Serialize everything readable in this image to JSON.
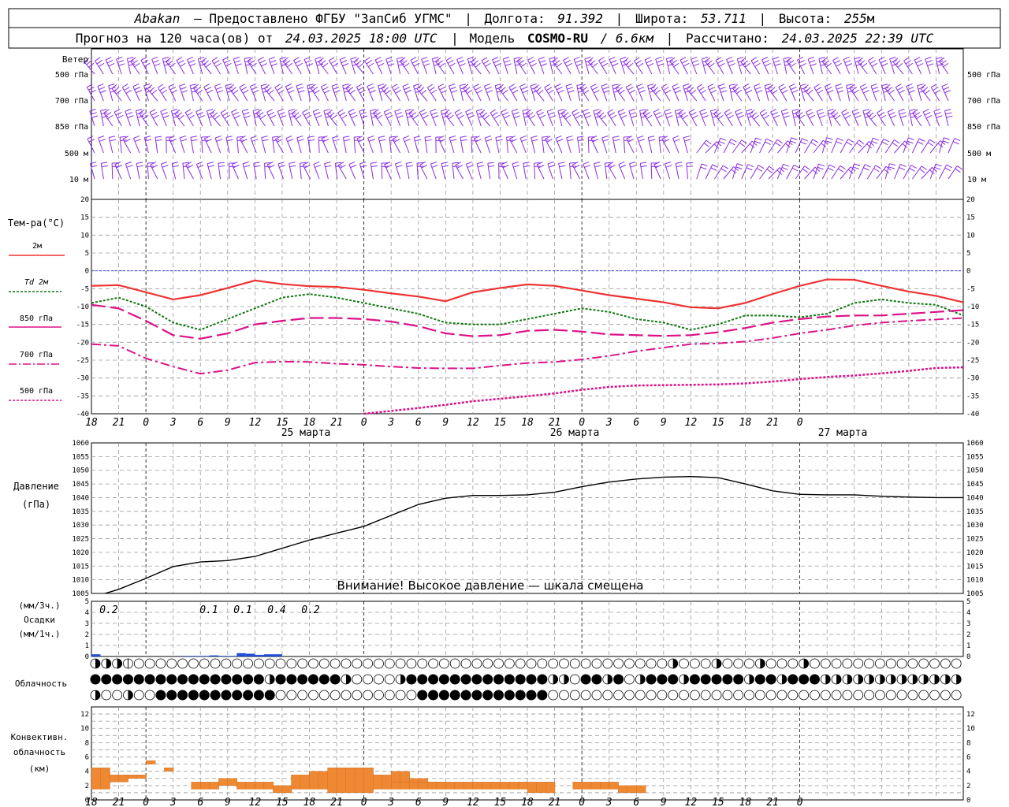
{
  "header": {
    "station": "Abakan",
    "provider": "— Предоставлено ФГБУ \"ЗапСиб УГМС\"",
    "lon_label": "Долгота:",
    "lon": "91.392",
    "lat_label": "Широта:",
    "lat": "53.711",
    "alt_label": "Высота:",
    "alt": "255",
    "alt_unit": "м",
    "forecast_label": "Прогноз на 120 часа(ов) от",
    "forecast_from": "24.03.2025 18:00 UTC",
    "model_label": "Модель",
    "model": "COSMO-RU",
    "resolution": "/ 6.6км",
    "computed_label": "Рассчитано:",
    "computed": "24.03.2025 22:39 UTC"
  },
  "wind_panel": {
    "title": "Ветер",
    "levels": [
      "500 гПа",
      "700 гПа",
      "850 гПа",
      "500 м",
      "10 м"
    ]
  },
  "temp_panel": {
    "title": "Тем-ра(°C)",
    "legend": [
      {
        "label": "2м",
        "color": "#ee3333",
        "dash": "solid"
      },
      {
        "label": "Td 2м",
        "color": "#117711",
        "dash": "dotted"
      },
      {
        "label": "850 гПа",
        "color": "#dd1188",
        "dash": "long-dash"
      },
      {
        "label": "700 гПа",
        "color": "#dd1188",
        "dash": "dash-dot"
      },
      {
        "label": "500 гПа",
        "color": "#dd1188",
        "dash": "dotted"
      }
    ],
    "yticks": [
      "20",
      "15",
      "10",
      "5",
      "0",
      "-5",
      "-10",
      "-15",
      "-20",
      "-25",
      "-30",
      "-35",
      "-40"
    ]
  },
  "pressure_panel": {
    "title": "Давление",
    "unit": "(гПа)",
    "warning": "Внимание! Высокое давление — шкала смещена",
    "yticks": [
      "1060",
      "1055",
      "1050",
      "1045",
      "1040",
      "1035",
      "1030",
      "1025",
      "1020",
      "1015",
      "1010",
      "1005"
    ]
  },
  "precip_panel": {
    "unit3": "(мм/3ч.)",
    "title": "Осадки",
    "unit1": "(мм/1ч.)",
    "yticks": [
      "5",
      "4",
      "3",
      "2",
      "1",
      "0"
    ],
    "labels": [
      "0.2",
      "0.1",
      "0.1",
      "0.4",
      "0.2"
    ]
  },
  "cloud_panel": {
    "title": "Облачность"
  },
  "conv_panel": {
    "title1": "Конвективн.",
    "title2": "облачность",
    "unit": "(км)",
    "yticks": [
      "12",
      "10",
      "8",
      "6",
      "4",
      "2",
      "0"
    ]
  },
  "x_axis": {
    "hour_labels": [
      "18",
      "21",
      "0",
      "3",
      "6",
      "9",
      "12",
      "15",
      "18",
      "21",
      "0",
      "3",
      "6",
      "9",
      "12",
      "15",
      "18",
      "21",
      "0",
      "3",
      "6",
      "9",
      "12",
      "15",
      "18",
      "21",
      "0"
    ],
    "dates": [
      "25 марта",
      "26 марта",
      "27 марта"
    ]
  },
  "chart_data": [
    {
      "type": "line",
      "title": "Тем-ра(°C)",
      "x_unit": "hours since 24.03.2025 18:00 UTC",
      "ylim": [
        -40,
        20
      ],
      "grid": true,
      "series": [
        {
          "name": "2м",
          "x": [
            0,
            3,
            6,
            9,
            12,
            15,
            18,
            21,
            24,
            27,
            30,
            33,
            36,
            39,
            42,
            45,
            48,
            51,
            54,
            57,
            60,
            63,
            66,
            69,
            72,
            75,
            78,
            81,
            84,
            87,
            90,
            93,
            96
          ],
          "values": [
            -4.2,
            -4.0,
            -6.0,
            -8.0,
            -6.8,
            -4.8,
            -2.7,
            -3.7,
            -4.3,
            -4.5,
            -5.3,
            -6.3,
            -7.2,
            -8.5,
            -6.0,
            -4.8,
            -3.8,
            -4.2,
            -5.5,
            -6.8,
            -7.8,
            -8.8,
            -10.2,
            -10.5,
            -9.0,
            -6.5,
            -4.2,
            -2.4,
            -2.5,
            -4.2,
            -5.8,
            -7.0,
            -8.8
          ]
        },
        {
          "name": "Td 2м",
          "x": [
            0,
            3,
            6,
            9,
            12,
            15,
            18,
            21,
            24,
            27,
            30,
            33,
            36,
            39,
            42,
            45,
            48,
            51,
            54,
            57,
            60,
            63,
            66,
            69,
            72,
            75,
            78,
            81,
            84,
            87,
            90,
            93,
            96
          ],
          "values": [
            -9.0,
            -7.5,
            -10.0,
            -14.5,
            -16.5,
            -13.5,
            -10.5,
            -7.5,
            -6.5,
            -7.5,
            -9.0,
            -10.5,
            -12.0,
            -14.5,
            -15.0,
            -15.0,
            -13.5,
            -12.0,
            -10.5,
            -11.5,
            -13.5,
            -14.5,
            -16.5,
            -15.0,
            -12.5,
            -12.5,
            -13.0,
            -12.0,
            -9.0,
            -8.0,
            -9.0,
            -9.5,
            -12.5
          ]
        },
        {
          "name": "850 гПа",
          "x": [
            0,
            3,
            6,
            9,
            12,
            15,
            18,
            21,
            24,
            27,
            30,
            33,
            36,
            39,
            42,
            45,
            48,
            51,
            54,
            57,
            60,
            63,
            66,
            69,
            72,
            75,
            78,
            81,
            84,
            87,
            90,
            93,
            96
          ],
          "values": [
            -9.5,
            -10.5,
            -14.0,
            -18.0,
            -19.0,
            -17.5,
            -15.0,
            -14.0,
            -13.2,
            -13.2,
            -13.5,
            -14.2,
            -15.5,
            -17.5,
            -18.3,
            -18.0,
            -16.8,
            -16.5,
            -17.0,
            -17.8,
            -18.0,
            -18.2,
            -18.0,
            -17.2,
            -16.0,
            -14.5,
            -13.5,
            -12.8,
            -12.5,
            -12.5,
            -12.0,
            -11.5,
            -11.0
          ]
        },
        {
          "name": "700 гПа",
          "x": [
            0,
            3,
            6,
            9,
            12,
            15,
            18,
            21,
            24,
            27,
            30,
            33,
            36,
            39,
            42,
            45,
            48,
            51,
            54,
            57,
            60,
            63,
            66,
            69,
            72,
            75,
            78,
            81,
            84,
            87,
            90,
            93,
            96
          ],
          "values": [
            -20.5,
            -21.0,
            -24.5,
            -26.8,
            -28.8,
            -27.8,
            -25.7,
            -25.4,
            -25.5,
            -26.0,
            -26.3,
            -26.8,
            -27.2,
            -27.3,
            -27.3,
            -26.5,
            -25.8,
            -25.5,
            -24.8,
            -23.8,
            -22.5,
            -21.5,
            -20.5,
            -20.3,
            -19.8,
            -18.8,
            -17.5,
            -16.5,
            -15.3,
            -14.5,
            -14.0,
            -13.6,
            -13.2
          ]
        },
        {
          "name": "500 гПа",
          "x": [
            30,
            33,
            36,
            39,
            42,
            45,
            48,
            51,
            54,
            57,
            60,
            63,
            66,
            69,
            72,
            75,
            78,
            81,
            84,
            87,
            90,
            93,
            96
          ],
          "values": [
            -40.0,
            -39.2,
            -38.4,
            -37.5,
            -36.5,
            -35.8,
            -35.1,
            -34.3,
            -33.3,
            -32.5,
            -32.1,
            -32.0,
            -31.9,
            -31.8,
            -31.5,
            -31.0,
            -30.3,
            -29.7,
            -29.3,
            -28.7,
            -28.0,
            -27.2,
            -27.0
          ]
        }
      ]
    },
    {
      "type": "line",
      "title": "Давление",
      "x_unit": "hours since 24.03.2025 18:00 UTC",
      "ylim": [
        1005,
        1060
      ],
      "grid": true,
      "series": [
        {
          "name": "",
          "x": [
            0,
            3,
            6,
            9,
            12,
            15,
            18,
            21,
            24,
            27,
            30,
            33,
            36,
            39,
            42,
            45,
            48,
            51,
            54,
            57,
            60,
            63,
            66,
            69,
            72,
            75,
            78,
            81,
            84,
            87,
            90,
            93,
            96
          ],
          "values": [
            1003.5,
            1006.5,
            1010.5,
            1014.8,
            1016.5,
            1017.0,
            1018.5,
            1021.5,
            1024.5,
            1027.0,
            1029.5,
            1033.5,
            1037.5,
            1039.8,
            1040.8,
            1040.8,
            1041.0,
            1042.0,
            1044.0,
            1045.7,
            1046.8,
            1047.5,
            1047.7,
            1047.3,
            1045.0,
            1042.5,
            1041.2,
            1041.0,
            1041.0,
            1040.5,
            1040.2,
            1040.0,
            1040.0
          ]
        }
      ]
    },
    {
      "type": "bar",
      "title": "Осадки",
      "x_unit": "hours since 24.03.2025 18:00 UTC",
      "ylim": [
        0,
        5
      ],
      "series": [
        {
          "name": "(мм/1ч.)",
          "x": [
            0,
            1,
            10,
            11,
            12,
            13,
            14,
            15,
            16,
            17,
            18,
            19,
            20
          ],
          "values": [
            0.2,
            0.0,
            0.05,
            0.05,
            0.05,
            0.1,
            0.05,
            0.05,
            0.3,
            0.25,
            0.15,
            0.2,
            0.2
          ]
        }
      ]
    },
    {
      "type": "bar",
      "title": "Конвективн. облачность",
      "x_unit": "hours since 24.03.2025 18:00 UTC",
      "ylim": [
        0,
        13
      ],
      "series": [
        {
          "name": "",
          "x": [
            0,
            1,
            2,
            3,
            4,
            5,
            6,
            7,
            8,
            9,
            10,
            11,
            12,
            13,
            14,
            15,
            16,
            17,
            18,
            19,
            20,
            21,
            22,
            23,
            24,
            25,
            26,
            27,
            28,
            29,
            30,
            31,
            32,
            33,
            34,
            35,
            36,
            37,
            38,
            39,
            40,
            41,
            42,
            43,
            44,
            45,
            46,
            47,
            48,
            49,
            50,
            51,
            52,
            53,
            54,
            55,
            56,
            57,
            58,
            59,
            60,
            61,
            62
          ],
          "bottom": [
            1.5,
            1.5,
            2.5,
            2.5,
            3.0,
            3.0,
            5.0,
            null,
            4.0,
            null,
            null,
            1.5,
            1.5,
            1.5,
            2.0,
            2.0,
            1.5,
            1.5,
            1.5,
            1.5,
            1.0,
            1.0,
            1.5,
            1.5,
            1.5,
            1.5,
            1.0,
            1.0,
            1.0,
            1.0,
            1.0,
            1.5,
            1.5,
            2.0,
            2.0,
            2.5,
            2.5,
            2.0,
            2.0,
            null,
            null,
            null,
            null,
            null,
            null,
            null,
            null,
            null,
            null,
            null,
            null,
            null,
            null,
            null,
            null,
            null,
            null,
            null,
            null,
            null,
            null,
            null,
            null
          ],
          "top": [
            4.5,
            4.5,
            3.5,
            3.5,
            3.5,
            3.5,
            5.5,
            null,
            4.5,
            null,
            null,
            2.5,
            2.5,
            2.5,
            3.0,
            3.0,
            2.5,
            2.5,
            2.5,
            2.5,
            2.0,
            2.0,
            3.5,
            3.5,
            4.0,
            4.0,
            4.5,
            4.5,
            4.5,
            4.5,
            4.5,
            3.5,
            3.5,
            4.0,
            4.0,
            3.0,
            3.0,
            2.5,
            2.5,
            null,
            null,
            null,
            null,
            null,
            null,
            null,
            null,
            null,
            null,
            null,
            null,
            null,
            null,
            null,
            null,
            null,
            null,
            null,
            null,
            null,
            null,
            null,
            null
          ]
        },
        {
          "name": "",
          "x": [
            33,
            34,
            35,
            36,
            37,
            38,
            39,
            40,
            41,
            42,
            43,
            44,
            45,
            46,
            47,
            48,
            49,
            50,
            51,
            52,
            53,
            54,
            55,
            56,
            57,
            58,
            59,
            60
          ],
          "bottom": [
            1.5,
            1.5,
            1.5,
            1.5,
            1.5,
            1.5,
            1.5,
            1.5,
            1.5,
            1.5,
            1.5,
            1.5,
            1.5,
            1.5,
            1.5,
            1.0,
            1.0,
            1.0,
            null,
            null,
            1.5,
            1.5,
            1.5,
            1.5,
            1.5,
            1.0,
            1.0,
            1.0
          ],
          "top": [
            2.5,
            2.5,
            2.5,
            2.5,
            2.5,
            2.5,
            2.5,
            2.5,
            2.5,
            2.5,
            2.5,
            2.5,
            2.5,
            2.5,
            2.5,
            2.5,
            2.5,
            2.5,
            null,
            null,
            2.5,
            2.5,
            2.5,
            2.5,
            2.5,
            2.0,
            2.0,
            2.0
          ]
        }
      ]
    }
  ]
}
